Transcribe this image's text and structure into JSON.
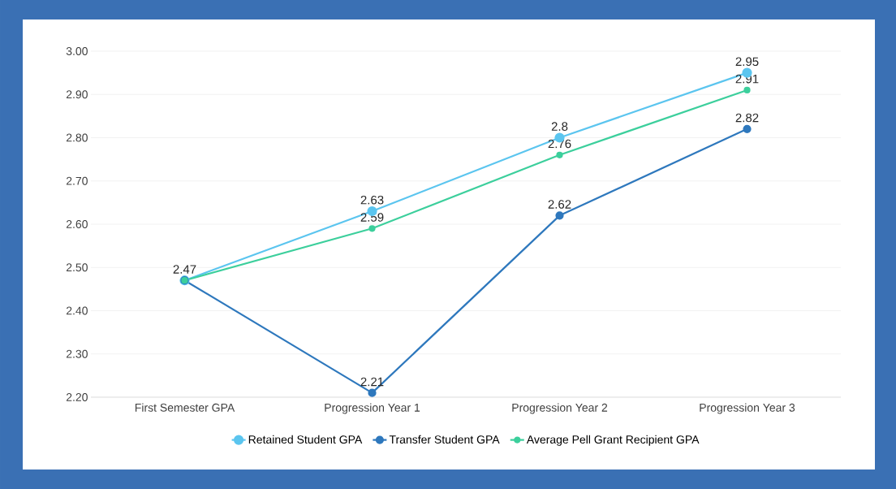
{
  "chart_data": {
    "type": "line",
    "categories": [
      "First Semester GPA",
      "Progression Year 1",
      "Progression Year 2",
      "Progression Year 3"
    ],
    "series": [
      {
        "name": "Retained Student GPA",
        "color": "#5bc5ef",
        "values": [
          2.47,
          2.63,
          2.8,
          2.95
        ],
        "value_labels": [
          "2.47",
          "2.63",
          "2.8",
          "2.95"
        ]
      },
      {
        "name": "Transfer Student GPA",
        "color": "#2e78bd",
        "values": [
          2.47,
          2.21,
          2.62,
          2.82
        ],
        "value_labels": [
          null,
          "2.21",
          "2.62",
          "2.82"
        ]
      },
      {
        "name": "Average Pell Grant Recipient GPA",
        "color": "#3ccf9c",
        "values": [
          2.47,
          2.59,
          2.76,
          2.91
        ],
        "value_labels": [
          null,
          "2.59",
          "2.76",
          "2.91"
        ]
      }
    ],
    "ylim": [
      2.2,
      3.0
    ],
    "yticks": [
      {
        "value": 2.2,
        "label": "2.20"
      },
      {
        "value": 2.3,
        "label": "2.30"
      },
      {
        "value": 2.4,
        "label": "2.40"
      },
      {
        "value": 2.5,
        "label": "2.50"
      },
      {
        "value": 2.6,
        "label": "2.60"
      },
      {
        "value": 2.7,
        "label": "2.70"
      },
      {
        "value": 2.8,
        "label": "2.80"
      },
      {
        "value": 2.9,
        "label": "2.90"
      },
      {
        "value": 3.0,
        "label": "3.00"
      }
    ],
    "grid": "y",
    "legend": "bottom",
    "marker": "circle",
    "line_style": "solid"
  }
}
